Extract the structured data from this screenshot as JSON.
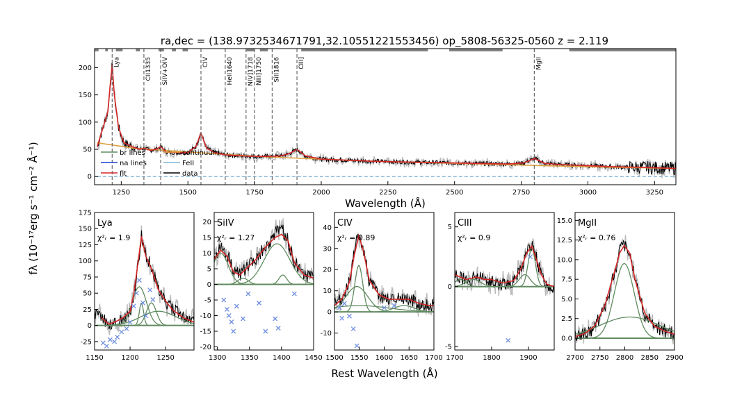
{
  "title": "ra,dec = (138.9732534671791,32.10551221553456)   op_5808-56325-0560   z = 2.119",
  "ylabel": "fλ (10⁻¹⁷erg s⁻¹ cm⁻² Å⁻¹)",
  "bottom_xlabel": "Rest Wavelength (Å)",
  "colors": {
    "data": "#000000",
    "error": "#bbbbbb",
    "fit": "#d62728",
    "br_lines": "#5f8a5f",
    "na_lines": "#1f3fd6",
    "continuum": "#e0a040",
    "feii": "#7fb3d5",
    "masked": "#6f8fdf",
    "linemark": "#666666"
  },
  "chart_data": [
    {
      "type": "line",
      "panel": "full",
      "xlabel": "Wavelength (Å)",
      "xlim": [
        1150,
        3330
      ],
      "ylim": [
        -15,
        235
      ],
      "xticks": [
        1250,
        1500,
        1750,
        2000,
        2250,
        2500,
        2750,
        3000,
        3250
      ],
      "yticks": [
        0,
        50,
        100,
        150,
        200
      ],
      "legend": {
        "position": "lower-left",
        "entries": [
          {
            "label": "br lines",
            "key": "br_lines"
          },
          {
            "label": "na lines",
            "key": "na_lines"
          },
          {
            "label": "fit",
            "key": "fit"
          },
          {
            "label": "continuum",
            "key": "continuum"
          },
          {
            "label": "FeII",
            "key": "feii"
          },
          {
            "label": "data",
            "key": "data"
          }
        ]
      },
      "lines": [
        {
          "label": "Lya",
          "x": 1216
        },
        {
          "label": "CII1335",
          "x": 1335
        },
        {
          "label": "SiIV+OIV",
          "x": 1398
        },
        {
          "label": "CIV",
          "x": 1549
        },
        {
          "label": "HeII1640",
          "x": 1640
        },
        {
          "label": "NIV]1718",
          "x": 1718
        },
        {
          "label": "NIII]1750",
          "x": 1750
        },
        {
          "label": "SiII1816",
          "x": 1816
        },
        {
          "label": "CIII]",
          "x": 1909
        },
        {
          "label": "MgII",
          "x": 2799
        }
      ],
      "mask_segments": [
        [
          1150,
          1165
        ],
        [
          1190,
          1200
        ],
        [
          1230,
          1255
        ],
        [
          1305,
          1320
        ],
        [
          1390,
          1410
        ],
        [
          1440,
          1455
        ],
        [
          1480,
          1500
        ],
        [
          1720,
          1750
        ],
        [
          1770,
          1800
        ],
        [
          1925,
          2400
        ],
        [
          2480,
          2680
        ],
        [
          2930,
          3330
        ]
      ],
      "spectrum": {
        "x": [
          1160,
          1185,
          1200,
          1208,
          1216,
          1224,
          1240,
          1260,
          1290,
          1320,
          1335,
          1360,
          1380,
          1398,
          1420,
          1460,
          1500,
          1530,
          1549,
          1570,
          1600,
          1640,
          1700,
          1750,
          1800,
          1850,
          1880,
          1909,
          1940,
          2000,
          2200,
          2400,
          2600,
          2700,
          2760,
          2799,
          2840,
          2900,
          3000,
          3100,
          3200,
          3330
        ],
        "y": [
          55,
          95,
          120,
          165,
          205,
          150,
          90,
          62,
          55,
          50,
          52,
          48,
          50,
          55,
          45,
          44,
          44,
          55,
          80,
          52,
          44,
          40,
          38,
          37,
          37,
          38,
          42,
          50,
          38,
          32,
          28,
          26,
          24,
          23,
          25,
          33,
          24,
          22,
          20,
          18,
          17,
          15
        ]
      },
      "continuum": {
        "x": [
          1160,
          1300,
          1500,
          1800,
          2200,
          2600,
          3000,
          3330
        ],
        "y": [
          62,
          52,
          45,
          36,
          28,
          23,
          18,
          15
        ]
      },
      "feii": {
        "x": [
          1160,
          3330
        ],
        "y": [
          0,
          0
        ]
      }
    },
    {
      "type": "line",
      "panel": "Lya",
      "name": "Lya",
      "chi2": "χ²ᵣ = 1.9",
      "xlim": [
        1150,
        1290
      ],
      "ylim": [
        -38,
        175
      ],
      "xticks": [
        1150,
        1200,
        1250
      ],
      "yticks": [
        -25,
        0,
        25,
        50,
        75,
        100,
        125,
        150,
        175
      ],
      "data": {
        "x": [
          1160,
          1170,
          1180,
          1190,
          1200,
          1205,
          1210,
          1216,
          1222,
          1230,
          1240,
          1250,
          1260,
          1275,
          1290
        ],
        "y": [
          15,
          0,
          5,
          10,
          20,
          45,
          85,
          140,
          110,
          90,
          55,
          38,
          25,
          12,
          5
        ]
      },
      "fit": {
        "x": [
          1160,
          1170,
          1180,
          1190,
          1200,
          1205,
          1210,
          1216,
          1222,
          1230,
          1240,
          1250,
          1260,
          1275,
          1290
        ],
        "y": [
          12,
          2,
          6,
          12,
          22,
          48,
          88,
          138,
          108,
          88,
          55,
          38,
          24,
          12,
          5
        ]
      },
      "components": [
        {
          "center": 1216,
          "amp": 35,
          "sigma": 3
        },
        {
          "center": 1213,
          "amp": 60,
          "sigma": 10
        },
        {
          "center": 1230,
          "amp": 35,
          "sigma": 7
        },
        {
          "center": 1240,
          "amp": 22,
          "sigma": 25
        }
      ],
      "masked": {
        "x": [
          1162,
          1167,
          1172,
          1178,
          1182,
          1188,
          1195,
          1200,
          1205,
          1209,
          1213,
          1218,
          1222,
          1228,
          1232
        ],
        "y": [
          -27,
          -32,
          -22,
          -25,
          -18,
          -10,
          -5,
          5,
          30,
          50,
          70,
          35,
          15,
          55,
          40
        ]
      }
    },
    {
      "type": "line",
      "panel": "SiIV",
      "name": "SiIV",
      "chi2": "χ²ᵣ = 1.27",
      "xlim": [
        1295,
        1450
      ],
      "ylim": [
        -21,
        23
      ],
      "xticks": [
        1300,
        1350,
        1400,
        1450
      ],
      "yticks": [
        -20,
        -15,
        -10,
        -5,
        0,
        5,
        10,
        15,
        20
      ],
      "data": {
        "x": [
          1295,
          1305,
          1315,
          1325,
          1335,
          1345,
          1360,
          1375,
          1390,
          1400,
          1410,
          1420,
          1435,
          1450
        ],
        "y": [
          8,
          12,
          10,
          5,
          3,
          5,
          8,
          12,
          16,
          18,
          14,
          7,
          3,
          2
        ]
      },
      "fit": {
        "x": [
          1295,
          1305,
          1315,
          1325,
          1335,
          1345,
          1360,
          1375,
          1390,
          1400,
          1410,
          1420,
          1435,
          1450
        ],
        "y": [
          8,
          11,
          9,
          4,
          3,
          5,
          8,
          12,
          15,
          16,
          14,
          7,
          3,
          2
        ]
      },
      "components": [
        {
          "center": 1305,
          "amp": 10,
          "sigma": 12
        },
        {
          "center": 1340,
          "amp": 2,
          "sigma": 8
        },
        {
          "center": 1393,
          "amp": 13,
          "sigma": 20
        },
        {
          "center": 1402,
          "amp": 3,
          "sigma": 6
        }
      ],
      "masked": {
        "x": [
          1310,
          1315,
          1318,
          1322,
          1325,
          1330,
          1340,
          1348,
          1365,
          1375,
          1390,
          1395,
          1420
        ],
        "y": [
          -5,
          -8,
          -10,
          -12,
          -15,
          -7,
          -11,
          -3,
          -6,
          -15,
          -11,
          -14,
          -3
        ]
      }
    },
    {
      "type": "line",
      "panel": "CIV",
      "name": "CIV",
      "chi2": "χ²ᵣ = 0.89",
      "xlim": [
        1500,
        1700
      ],
      "ylim": [
        -18,
        47
      ],
      "xticks": [
        1500,
        1550,
        1600,
        1650,
        1700
      ],
      "yticks": [
        -10,
        0,
        10,
        20,
        30,
        40
      ],
      "data": {
        "x": [
          1500,
          1515,
          1530,
          1540,
          1549,
          1558,
          1570,
          1590,
          1610,
          1630,
          1650,
          1670,
          1690,
          1700
        ],
        "y": [
          3,
          6,
          14,
          28,
          38,
          30,
          15,
          8,
          6,
          7,
          6,
          4,
          3,
          3
        ]
      },
      "fit": {
        "x": [
          1500,
          1515,
          1530,
          1540,
          1549,
          1558,
          1570,
          1590,
          1610,
          1630,
          1650,
          1670,
          1690,
          1700
        ],
        "y": [
          3,
          6,
          14,
          27,
          36,
          29,
          15,
          8,
          6,
          6,
          6,
          4,
          3,
          3
        ]
      },
      "components": [
        {
          "center": 1549,
          "amp": 22,
          "sigma": 8
        },
        {
          "center": 1545,
          "amp": 12,
          "sigma": 22
        },
        {
          "center": 1640,
          "amp": 3,
          "sigma": 20
        },
        {
          "center": 1550,
          "amp": 3,
          "sigma": 60
        }
      ],
      "masked": {
        "x": [
          1510,
          1515,
          1520,
          1530,
          1538,
          1545,
          1600,
          1620
        ],
        "y": [
          2,
          -3,
          4,
          -2,
          -8,
          -16,
          2,
          3
        ]
      }
    },
    {
      "type": "line",
      "panel": "CIII",
      "name": "CIII",
      "chi2": "χ²ᵣ = 0.9",
      "xlim": [
        1700,
        1970
      ],
      "ylim": [
        -5.3,
        6.2
      ],
      "xticks": [
        1700,
        1800,
        1900
      ],
      "yticks": [
        -5,
        0,
        5
      ],
      "data": {
        "x": [
          1700,
          1730,
          1760,
          1780,
          1800,
          1830,
          1860,
          1880,
          1895,
          1909,
          1920,
          1935,
          1950,
          1970
        ],
        "y": [
          1.0,
          0.5,
          0.8,
          0.6,
          0.5,
          0.2,
          0.5,
          1.5,
          3.0,
          3.5,
          2.5,
          1.0,
          0.2,
          0.0
        ]
      },
      "fit": {
        "x": [
          1700,
          1730,
          1760,
          1780,
          1800,
          1830,
          1860,
          1880,
          1895,
          1909,
          1920,
          1935,
          1950,
          1970
        ],
        "y": [
          1.0,
          0.6,
          0.8,
          0.6,
          0.6,
          0.3,
          0.5,
          1.5,
          2.8,
          3.4,
          2.4,
          1.0,
          0.2,
          0.0
        ]
      },
      "components": [
        {
          "center": 1909,
          "amp": 3.2,
          "sigma": 10
        },
        {
          "center": 1890,
          "amp": 1.0,
          "sigma": 15
        },
        {
          "center": 1750,
          "amp": 0.6,
          "sigma": 20
        },
        {
          "center": 1715,
          "amp": 0.6,
          "sigma": 15
        }
      ],
      "masked": {
        "x": [
          1845,
          1905
        ],
        "y": [
          -4.5,
          2.5
        ]
      }
    },
    {
      "type": "line",
      "panel": "MgII",
      "name": "MgII",
      "chi2": "χ²ᵣ = 0.76",
      "xlim": [
        2700,
        2900
      ],
      "ylim": [
        -1.5,
        16
      ],
      "xticks": [
        2700,
        2750,
        2800,
        2850,
        2900
      ],
      "yticks": [
        0.0,
        2.5,
        5.0,
        7.5,
        10.0,
        12.5,
        15.0
      ],
      "data": {
        "x": [
          2700,
          2720,
          2740,
          2760,
          2780,
          2790,
          2799,
          2810,
          2820,
          2840,
          2860,
          2880,
          2900
        ],
        "y": [
          0.2,
          0.5,
          1.5,
          4.0,
          8.5,
          11.0,
          12.0,
          11.0,
          7.5,
          3.0,
          1.5,
          1.0,
          0.5
        ]
      },
      "fit": {
        "x": [
          2700,
          2720,
          2740,
          2760,
          2780,
          2790,
          2799,
          2810,
          2820,
          2840,
          2860,
          2880,
          2900
        ],
        "y": [
          0.2,
          0.6,
          1.6,
          4.2,
          8.6,
          10.9,
          11.8,
          10.8,
          7.6,
          3.2,
          1.5,
          0.9,
          0.5
        ]
      },
      "components": [
        {
          "center": 2799,
          "amp": 9.5,
          "sigma": 20
        },
        {
          "center": 2810,
          "amp": 2.7,
          "sigma": 60
        }
      ],
      "masked": {
        "x": [],
        "y": []
      }
    }
  ]
}
